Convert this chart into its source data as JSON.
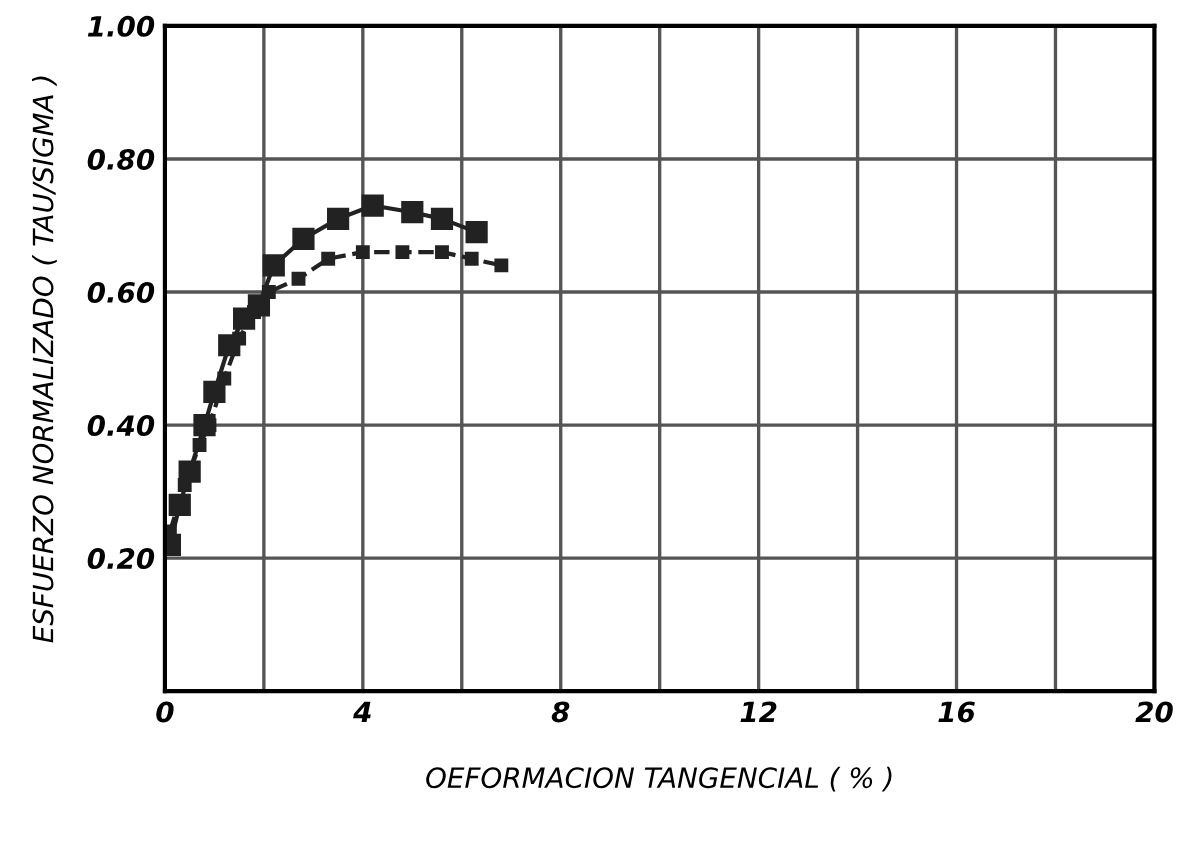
{
  "chart_data": {
    "type": "line",
    "xlabel": "OEFORMACION TANGENCIAL ( % )",
    "ylabel": "ESFUERZO NORMALIZADO ( TAU/SIGMA )",
    "xlim": [
      0,
      20
    ],
    "xticks": [
      0,
      {
        "value": 2,
        "label": null
      },
      4,
      {
        "value": 6,
        "label": null
      },
      8,
      {
        "value": 10,
        "label": null
      },
      12,
      {
        "value": 14,
        "label": null
      },
      16,
      {
        "value": 18,
        "label": null
      },
      20
    ],
    "ylim": [
      0,
      1
    ],
    "yticks": [
      {
        "value": 0.2,
        "label": "0.20"
      },
      {
        "value": 0.4,
        "label": "0.40"
      },
      {
        "value": 0.6,
        "label": "0.60"
      },
      {
        "value": 0.8,
        "label": "0.80"
      },
      {
        "value": 1.0,
        "label": "1.00"
      }
    ],
    "grid": true,
    "marker": "square",
    "series": [
      {
        "color": "#222222",
        "line_style": "solid",
        "x": [
          0.1,
          0.3,
          0.5,
          0.8,
          1.0,
          1.3,
          1.6,
          1.9,
          2.2,
          2.8,
          3.5,
          4.2,
          5.0,
          5.6,
          6.3
        ],
        "values": [
          0.22,
          0.28,
          0.33,
          0.4,
          0.45,
          0.52,
          0.56,
          0.58,
          0.64,
          0.68,
          0.71,
          0.73,
          0.72,
          0.71,
          0.69
        ]
      },
      {
        "color": "#222222",
        "line_style": "dashed",
        "x": [
          0.1,
          0.4,
          0.7,
          0.9,
          1.2,
          1.5,
          1.8,
          2.1,
          2.7,
          3.3,
          4.0,
          4.8,
          5.6,
          6.2,
          6.8
        ],
        "values": [
          0.24,
          0.31,
          0.37,
          0.4,
          0.47,
          0.53,
          0.57,
          0.6,
          0.62,
          0.65,
          0.66,
          0.66,
          0.66,
          0.65,
          0.64
        ]
      }
    ]
  }
}
